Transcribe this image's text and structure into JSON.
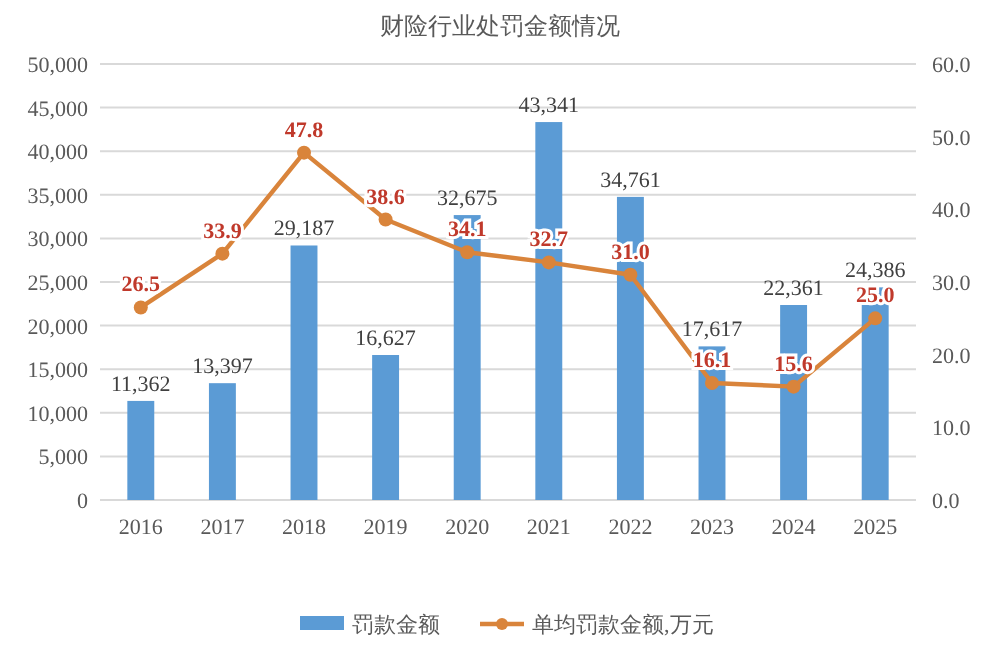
{
  "chart_data": {
    "type": "bar",
    "title": "财险行业处罚金额情况",
    "categories": [
      "2016",
      "2017",
      "2018",
      "2019",
      "2020",
      "2021",
      "2022",
      "2023",
      "2024",
      "2025"
    ],
    "series": [
      {
        "name": "罚款金额",
        "color": "#5b9bd5",
        "values": [
          11362,
          13397,
          29187,
          16627,
          32675,
          43341,
          34761,
          17617,
          22361,
          24386
        ],
        "value_labels": [
          "11,362",
          "13,397",
          "29,187",
          "16,627",
          "32,675",
          "43,341",
          "34,761",
          "17,617",
          "22,361",
          "24,386"
        ]
      },
      {
        "name": "单均罚款金额,万元",
        "type": "line",
        "axis": "y2",
        "color": "#d9843b",
        "marker": "circle",
        "values": [
          26.5,
          33.9,
          47.8,
          38.6,
          34.1,
          32.7,
          31.0,
          16.1,
          15.6,
          25.0
        ],
        "value_labels": [
          "26.5",
          "33.9",
          "47.8",
          "38.6",
          "34.1",
          "32.7",
          "31.0",
          "16.1",
          "15.6",
          "25.0"
        ]
      }
    ],
    "ylim": [
      0,
      50000
    ],
    "yticks": [
      {
        "value": 0,
        "label": "0"
      },
      {
        "value": 5000,
        "label": "5,000"
      },
      {
        "value": 10000,
        "label": "10,000"
      },
      {
        "value": 15000,
        "label": "15,000"
      },
      {
        "value": 20000,
        "label": "20,000"
      },
      {
        "value": 25000,
        "label": "25,000"
      },
      {
        "value": 30000,
        "label": "30,000"
      },
      {
        "value": 35000,
        "label": "35,000"
      },
      {
        "value": 40000,
        "label": "40,000"
      },
      {
        "value": 45000,
        "label": "45,000"
      },
      {
        "value": 50000,
        "label": "50,000"
      }
    ],
    "y2lim": [
      0,
      60
    ],
    "y2ticks": [
      {
        "value": 0,
        "label": "0.0"
      },
      {
        "value": 10,
        "label": "10.0"
      },
      {
        "value": 20,
        "label": "20.0"
      },
      {
        "value": 30,
        "label": "30.0"
      },
      {
        "value": 40,
        "label": "40.0"
      },
      {
        "value": 50,
        "label": "50.0"
      },
      {
        "value": 60,
        "label": "60.0"
      }
    ],
    "grid": "y",
    "legend": "bottom"
  }
}
